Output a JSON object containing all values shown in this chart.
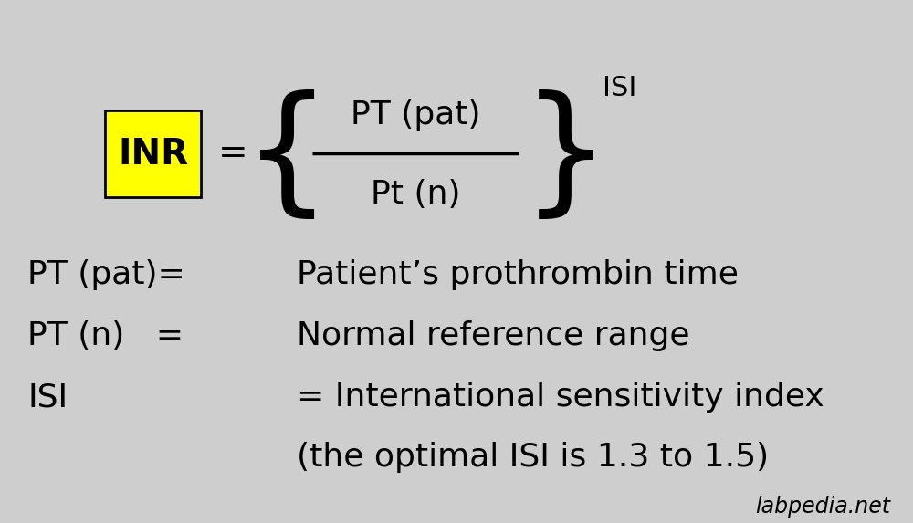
{
  "bg_color": "#cecece",
  "text_color": "#000000",
  "yellow_box_color": "#ffff00",
  "yellow_box_text": "INR",
  "formula_equals": "=",
  "numerator": "PT (pat)",
  "denominator": "Pt (n)",
  "superscript": "ISI",
  "line1_label": "PT (pat)=",
  "line1_value": "Patient’s prothrombin time",
  "line2_label": "PT (n)   =",
  "line2_value": "Normal reference range",
  "line3_label": "ISI",
  "line3_value": "= International sensitivity index",
  "line4_value": "(the optimal ISI is 1.3 to 1.5)",
  "watermark": "labpedia.net",
  "font_size_formula": 26,
  "font_size_box": 28,
  "font_size_body": 26,
  "font_size_super": 22,
  "font_size_watermark": 17,
  "font_size_brace": 110
}
